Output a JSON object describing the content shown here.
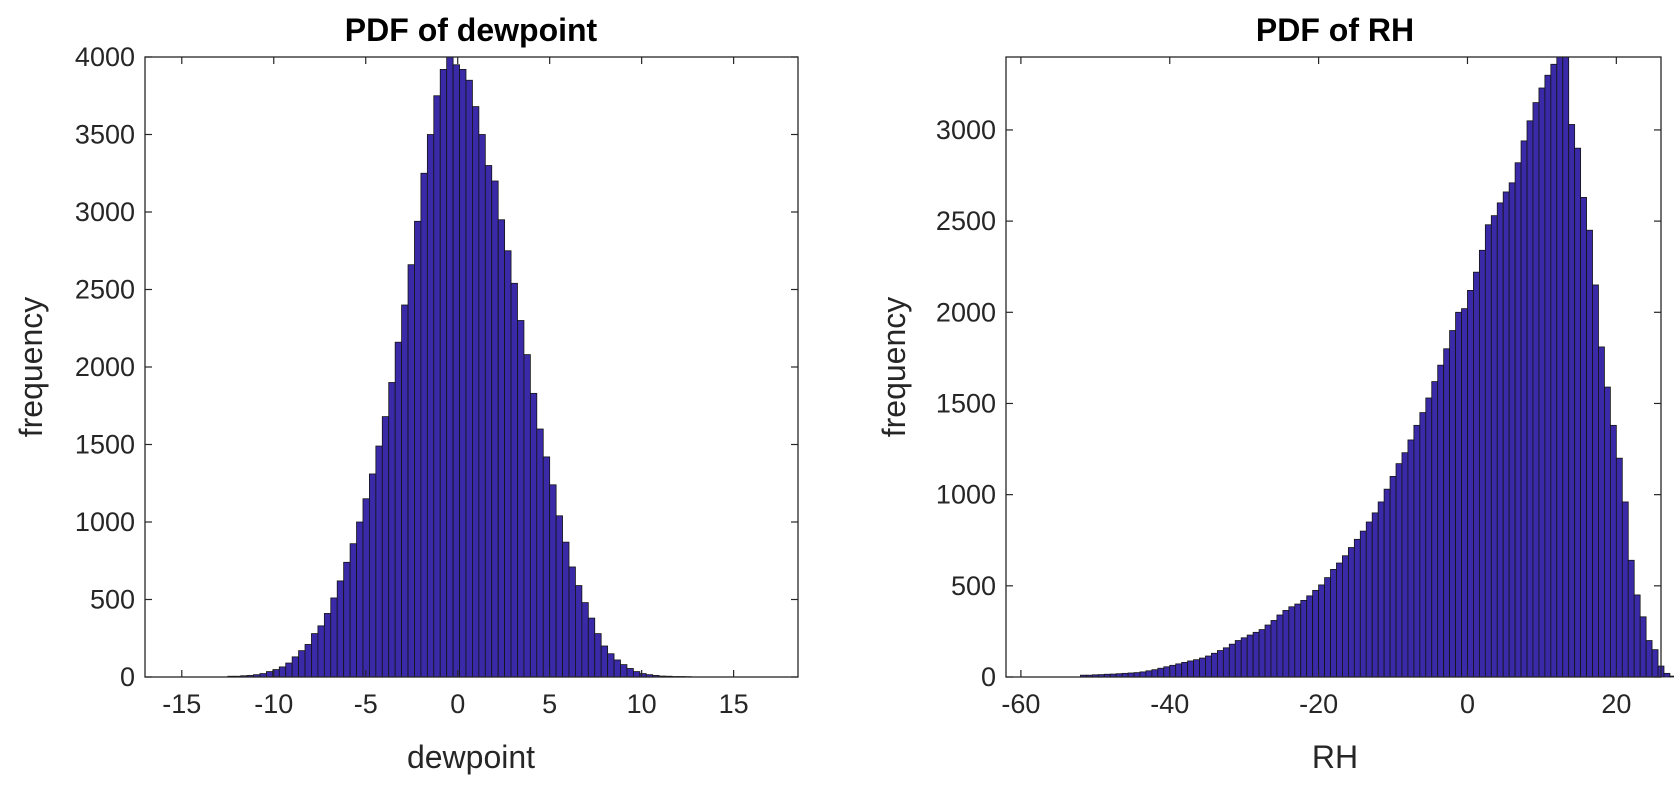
{
  "colors": {
    "bar_fill": "#3a2aa8",
    "bar_edge": "#141414",
    "axis": "#262626"
  },
  "chart_data": [
    {
      "type": "bar",
      "subtype": "histogram",
      "title": "PDF of dewpoint",
      "xlabel": "dewpoint",
      "ylabel": "frequency",
      "xlim": [
        -17,
        18.5
      ],
      "ylim": [
        0,
        4000
      ],
      "xticks": [
        -15,
        -10,
        -5,
        0,
        5,
        10,
        15
      ],
      "yticks": [
        0,
        500,
        1000,
        1500,
        2000,
        2500,
        3000,
        3500,
        4000
      ],
      "grid": false,
      "legend": "none",
      "bin_start": -12.5,
      "bin_width": 0.35,
      "values": [
        5,
        5,
        8,
        10,
        15,
        22,
        35,
        48,
        65,
        90,
        130,
        170,
        210,
        280,
        330,
        410,
        510,
        620,
        740,
        860,
        1000,
        1150,
        1310,
        1490,
        1680,
        1900,
        2160,
        2400,
        2660,
        2940,
        3250,
        3500,
        3750,
        3920,
        4000,
        3950,
        3920,
        3850,
        3680,
        3500,
        3300,
        3200,
        2950,
        2750,
        2540,
        2300,
        2080,
        1830,
        1600,
        1420,
        1240,
        1040,
        870,
        710,
        590,
        480,
        380,
        280,
        200,
        150,
        110,
        80,
        55,
        35,
        22,
        15,
        10,
        6,
        5,
        3,
        3,
        2
      ]
    },
    {
      "type": "bar",
      "subtype": "histogram",
      "title": "PDF of RH",
      "xlabel": "RH",
      "ylabel": "frequency",
      "xlim": [
        -62,
        26
      ],
      "ylim": [
        0,
        3400
      ],
      "xticks": [
        -60,
        -40,
        -20,
        0,
        20
      ],
      "yticks": [
        0,
        500,
        1000,
        1500,
        2000,
        2500,
        3000
      ],
      "grid": false,
      "legend": "none",
      "bin_start": -52,
      "bin_width": 0.8,
      "values": [
        10,
        10,
        12,
        13,
        15,
        16,
        18,
        20,
        22,
        24,
        28,
        34,
        40,
        48,
        56,
        64,
        72,
        80,
        88,
        95,
        104,
        115,
        130,
        145,
        160,
        180,
        200,
        215,
        230,
        245,
        260,
        285,
        310,
        340,
        365,
        385,
        400,
        420,
        445,
        475,
        505,
        545,
        590,
        625,
        665,
        710,
        755,
        800,
        850,
        900,
        960,
        1030,
        1100,
        1170,
        1230,
        1300,
        1380,
        1450,
        1530,
        1620,
        1710,
        1800,
        1900,
        2000,
        2020,
        2120,
        2220,
        2340,
        2480,
        2530,
        2600,
        2660,
        2710,
        2820,
        2940,
        3050,
        3150,
        3230,
        3300,
        3360,
        3420,
        3400,
        3030,
        2900,
        2630,
        2450,
        2150,
        1810,
        1590,
        1380,
        1200,
        960,
        640,
        450,
        330,
        200,
        150,
        60,
        20,
        5
      ]
    }
  ]
}
